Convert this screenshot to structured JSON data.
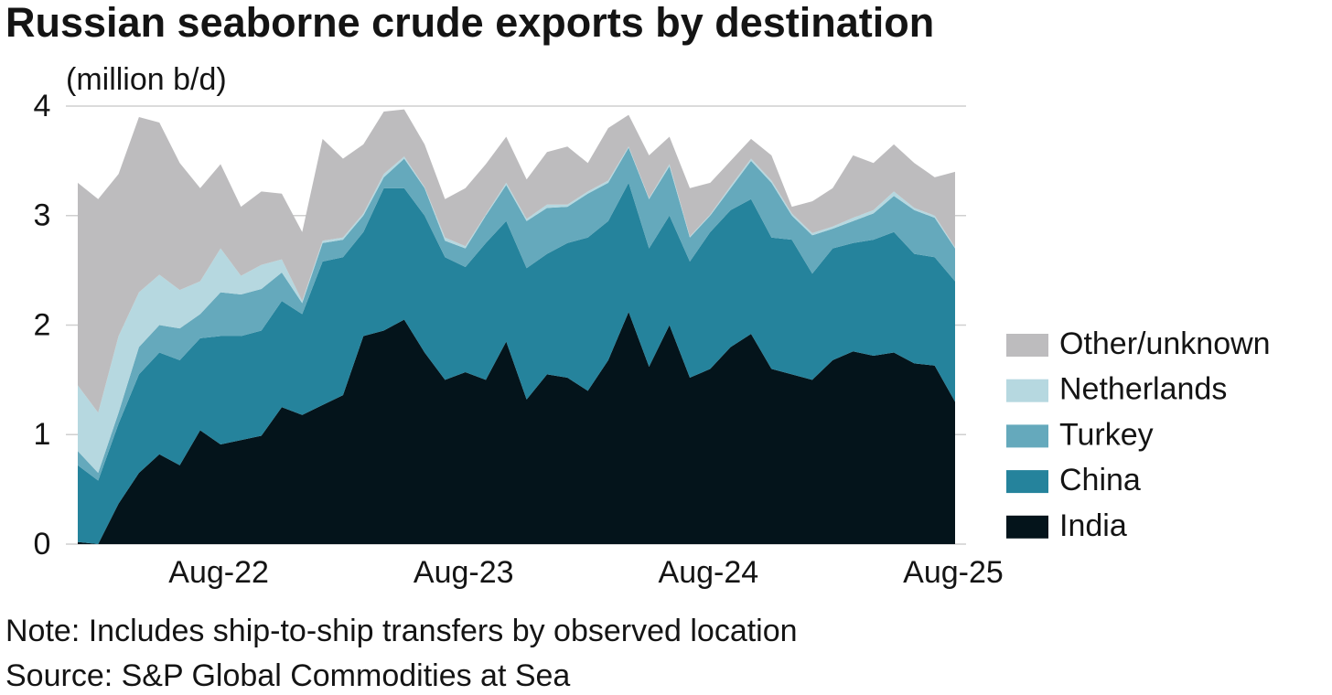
{
  "chart_data": {
    "type": "area",
    "stacked": true,
    "title": "Russian seaborne crude exports by destination",
    "subtitle": "(million b/d)",
    "note": "Note: Includes ship-to-ship transfers by observed location",
    "source": "Source: S&P Global Commodities at Sea",
    "categories": [
      null,
      null,
      null,
      null,
      null,
      null,
      null,
      "Aug-22",
      null,
      null,
      null,
      null,
      null,
      null,
      null,
      null,
      null,
      null,
      null,
      "Aug-23",
      null,
      null,
      null,
      null,
      null,
      null,
      null,
      null,
      null,
      null,
      null,
      "Aug-24",
      null,
      null,
      null,
      null,
      null,
      null,
      null,
      null,
      null,
      null,
      null,
      "Aug-25"
    ],
    "ylim": [
      0,
      4
    ],
    "yticks": [
      0,
      1,
      2,
      3,
      4
    ],
    "grid": true,
    "legend": "right",
    "series": [
      {
        "name": "India",
        "color": "#04141b",
        "values": [
          0.02,
          0,
          0.37,
          0.65,
          0.82,
          0.72,
          1.04,
          0.91,
          0.95,
          0.99,
          1.25,
          1.18,
          1.27,
          1.36,
          1.9,
          1.95,
          2.05,
          1.75,
          1.5,
          1.57,
          1.5,
          1.85,
          1.32,
          1.55,
          1.52,
          1.4,
          1.68,
          2.12,
          1.62,
          2.0,
          1.52,
          1.6,
          1.8,
          1.92,
          1.6,
          1.55,
          1.5,
          1.68,
          1.76,
          1.72,
          1.75,
          1.65,
          1.63,
          1.3
        ]
      },
      {
        "name": "China",
        "color": "#25839c",
        "values": [
          0.7,
          0.58,
          0.73,
          0.9,
          0.93,
          0.96,
          0.84,
          0.99,
          0.95,
          0.96,
          0.97,
          0.92,
          1.31,
          1.26,
          0.95,
          1.3,
          1.2,
          1.25,
          1.12,
          0.96,
          1.25,
          1.1,
          1.2,
          1.1,
          1.23,
          1.4,
          1.27,
          1.18,
          1.08,
          1.0,
          1.06,
          1.25,
          1.25,
          1.23,
          1.2,
          1.23,
          0.97,
          1.02,
          0.99,
          1.06,
          1.1,
          1.0,
          0.99,
          1.1
        ]
      },
      {
        "name": "Turkey",
        "color": "#65a9bc",
        "values": [
          0.13,
          0.07,
          0.1,
          0.25,
          0.25,
          0.29,
          0.22,
          0.4,
          0.38,
          0.38,
          0.26,
          0.1,
          0.17,
          0.16,
          0.15,
          0.1,
          0.27,
          0.25,
          0.15,
          0.17,
          0.25,
          0.33,
          0.43,
          0.42,
          0.33,
          0.4,
          0.35,
          0.32,
          0.45,
          0.45,
          0.22,
          0.15,
          0.2,
          0.35,
          0.5,
          0.22,
          0.35,
          0.18,
          0.2,
          0.24,
          0.33,
          0.4,
          0.36,
          0.3
        ]
      },
      {
        "name": "Netherlands",
        "color": "#b6d8e0",
        "values": [
          0.6,
          0.55,
          0.7,
          0.5,
          0.46,
          0.35,
          0.3,
          0.4,
          0.17,
          0.22,
          0.12,
          0.02,
          0.02,
          0.02,
          0.02,
          0.03,
          0.02,
          0.01,
          0.03,
          0.02,
          0.01,
          0.02,
          0.02,
          0.03,
          0.02,
          0.02,
          0.02,
          0.01,
          0.01,
          0.02,
          0.01,
          0.01,
          0.02,
          0.02,
          0.02,
          0.02,
          0.02,
          0.02,
          0.03,
          0.03,
          0.04,
          0.02,
          0.02,
          0.01
        ]
      },
      {
        "name": "Other/unknown",
        "color": "#bdbcbe",
        "values": [
          1.85,
          1.95,
          1.48,
          1.6,
          1.39,
          1.16,
          0.85,
          0.77,
          0.63,
          0.67,
          0.6,
          0.63,
          0.93,
          0.72,
          0.63,
          0.57,
          0.43,
          0.39,
          0.35,
          0.53,
          0.46,
          0.42,
          0.36,
          0.48,
          0.53,
          0.26,
          0.48,
          0.29,
          0.39,
          0.25,
          0.44,
          0.29,
          0.23,
          0.18,
          0.23,
          0.06,
          0.29,
          0.35,
          0.57,
          0.43,
          0.43,
          0.41,
          0.35,
          0.69
        ]
      }
    ]
  }
}
